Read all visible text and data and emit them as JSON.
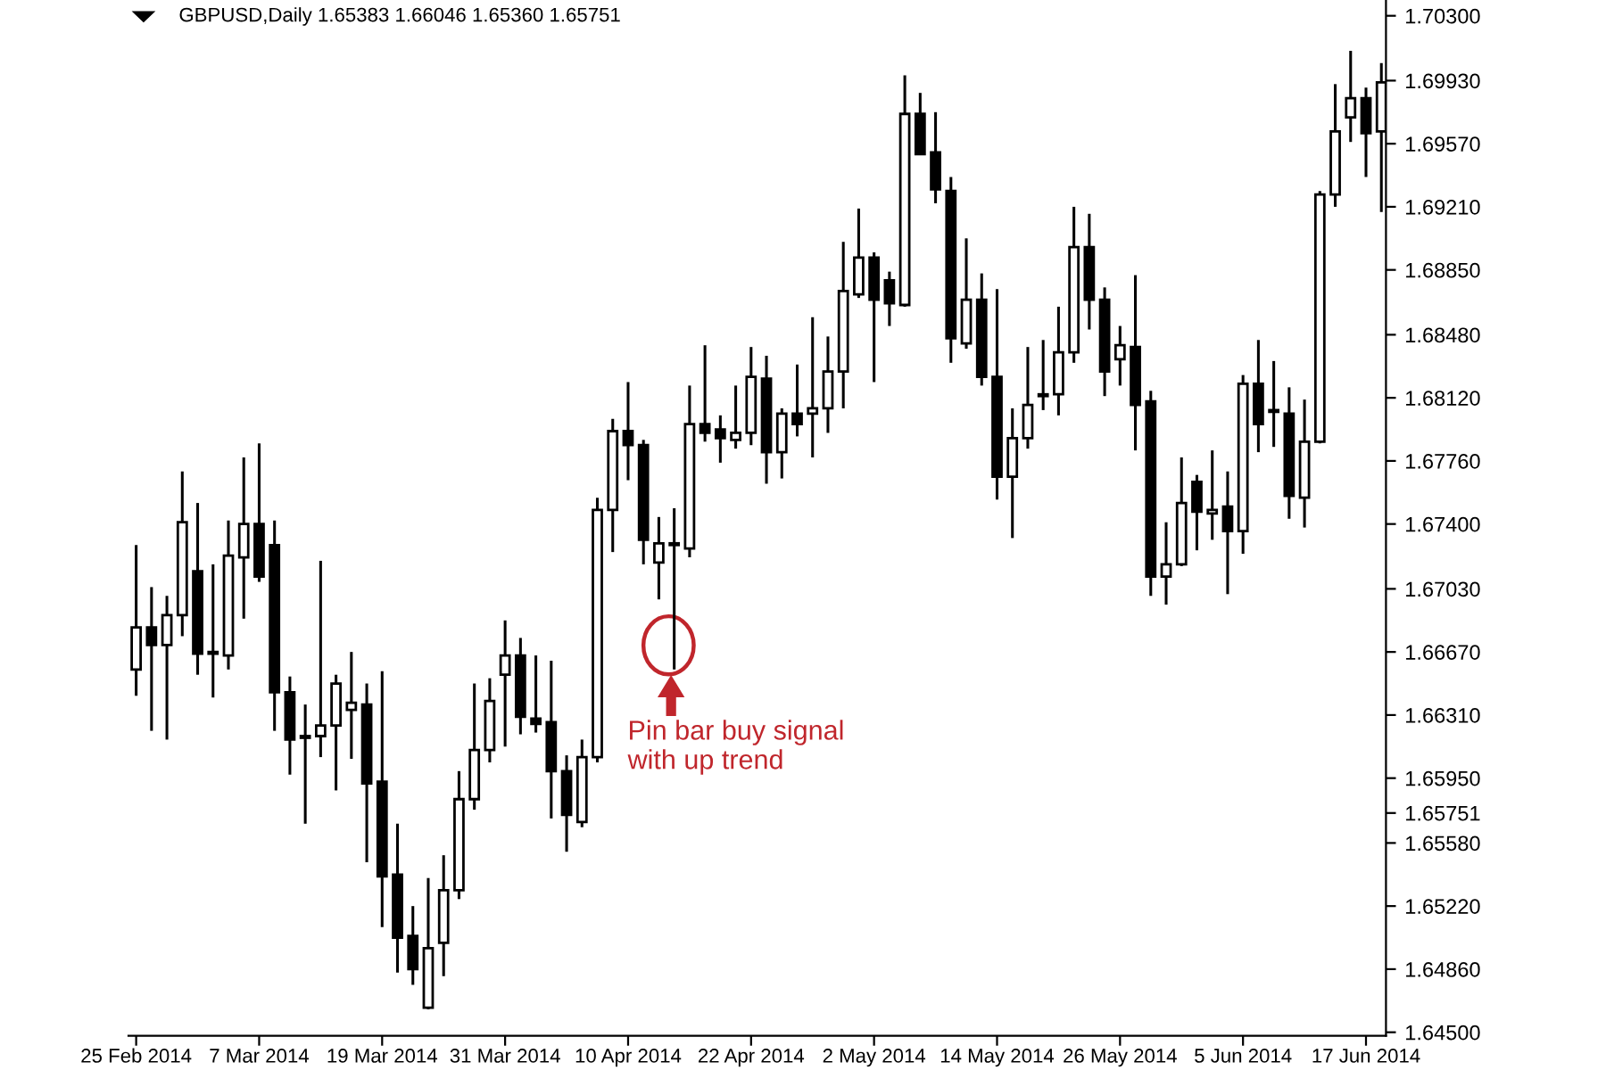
{
  "chart_data": {
    "type": "candlestick",
    "title": "GBPUSD,Daily 1.65383 1.66046 1.65360 1.65751",
    "categories": [
      "25 Feb 2014",
      null,
      null,
      null,
      null,
      null,
      null,
      null,
      "7 Mar 2014",
      null,
      null,
      null,
      null,
      null,
      null,
      null,
      "19 Mar 2014",
      null,
      null,
      null,
      null,
      null,
      null,
      null,
      "31 Mar 2014",
      null,
      null,
      null,
      null,
      null,
      null,
      null,
      "10 Apr 2014",
      null,
      null,
      null,
      null,
      null,
      null,
      null,
      "22 Apr 2014",
      null,
      null,
      null,
      null,
      null,
      null,
      null,
      "2 May 2014",
      null,
      null,
      null,
      null,
      null,
      null,
      null,
      "14 May 2014",
      null,
      null,
      null,
      null,
      null,
      null,
      null,
      "26 May 2014",
      null,
      null,
      null,
      null,
      null,
      null,
      null,
      "5 Jun 2014",
      null,
      null,
      null,
      null,
      null,
      null,
      null,
      "17 Jun 2014",
      null
    ],
    "ohlc": [
      [
        1.6657,
        1.6728,
        1.6642,
        1.6681
      ],
      [
        1.6681,
        1.6704,
        1.6622,
        1.6671
      ],
      [
        1.6671,
        1.6699,
        1.6617,
        1.6688
      ],
      [
        1.6688,
        1.677,
        1.6676,
        1.6741
      ],
      [
        1.6713,
        1.6752,
        1.6654,
        1.6666
      ],
      [
        1.6666,
        1.6717,
        1.6641,
        1.6667
      ],
      [
        1.6665,
        1.6742,
        1.6657,
        1.6722
      ],
      [
        1.6721,
        1.6778,
        1.6686,
        1.674
      ],
      [
        1.674,
        1.6786,
        1.6707,
        1.671
      ],
      [
        1.6728,
        1.6742,
        1.6622,
        1.6644
      ],
      [
        1.6644,
        1.6653,
        1.6597,
        1.6617
      ],
      [
        1.6618,
        1.6637,
        1.6569,
        1.6619
      ],
      [
        1.6619,
        1.6719,
        1.6607,
        1.6625
      ],
      [
        1.6625,
        1.6654,
        1.6588,
        1.6649
      ],
      [
        1.6634,
        1.6667,
        1.6606,
        1.6638
      ],
      [
        1.6637,
        1.6649,
        1.6547,
        1.6592
      ],
      [
        1.6593,
        1.6656,
        1.651,
        1.6539
      ],
      [
        1.654,
        1.6569,
        1.6484,
        1.6504
      ],
      [
        1.6505,
        1.6522,
        1.6477,
        1.6486
      ],
      [
        1.6464,
        1.6538,
        1.6463,
        1.6498
      ],
      [
        1.6501,
        1.6551,
        1.6482,
        1.6531
      ],
      [
        1.6531,
        1.6599,
        1.6526,
        1.6583
      ],
      [
        1.6583,
        1.6649,
        1.6577,
        1.6611
      ],
      [
        1.6611,
        1.6652,
        1.6604,
        1.6639
      ],
      [
        1.6654,
        1.6685,
        1.6613,
        1.6665
      ],
      [
        1.6665,
        1.6675,
        1.662,
        1.663
      ],
      [
        1.6629,
        1.6665,
        1.6621,
        1.6626
      ],
      [
        1.6627,
        1.6662,
        1.6572,
        1.6599
      ],
      [
        1.6599,
        1.6608,
        1.6553,
        1.6574
      ],
      [
        1.657,
        1.6617,
        1.6567,
        1.6607
      ],
      [
        1.6607,
        1.6755,
        1.6604,
        1.6748
      ],
      [
        1.6748,
        1.68,
        1.6724,
        1.6793
      ],
      [
        1.6793,
        1.6821,
        1.6765,
        1.6785
      ],
      [
        1.6785,
        1.6788,
        1.6717,
        1.6731
      ],
      [
        1.6718,
        1.6744,
        1.6697,
        1.6729
      ],
      [
        1.6728,
        1.6749,
        1.6657,
        1.6729
      ],
      [
        1.6726,
        1.6819,
        1.6721,
        1.6797
      ],
      [
        1.6797,
        1.6842,
        1.6787,
        1.6792
      ],
      [
        1.6794,
        1.6802,
        1.6775,
        1.6789
      ],
      [
        1.6788,
        1.6819,
        1.6783,
        1.6792
      ],
      [
        1.6792,
        1.6841,
        1.6785,
        1.6824
      ],
      [
        1.6823,
        1.6836,
        1.6763,
        1.6781
      ],
      [
        1.6781,
        1.6806,
        1.6766,
        1.6803
      ],
      [
        1.6803,
        1.6831,
        1.679,
        1.6797
      ],
      [
        1.6803,
        1.6858,
        1.6778,
        1.6806
      ],
      [
        1.6806,
        1.6847,
        1.6792,
        1.6827
      ],
      [
        1.6827,
        1.6901,
        1.6806,
        1.6873
      ],
      [
        1.6871,
        1.692,
        1.6869,
        1.6892
      ],
      [
        1.6892,
        1.6895,
        1.6821,
        1.6868
      ],
      [
        1.6879,
        1.6884,
        1.6853,
        1.6866
      ],
      [
        1.6865,
        1.6996,
        1.6864,
        1.6974
      ],
      [
        1.6974,
        1.6986,
        1.6951,
        1.6951
      ],
      [
        1.6952,
        1.6975,
        1.6923,
        1.6931
      ],
      [
        1.693,
        1.6938,
        1.6832,
        1.6846
      ],
      [
        1.6843,
        1.6903,
        1.684,
        1.6868
      ],
      [
        1.6868,
        1.6883,
        1.6819,
        1.6824
      ],
      [
        1.6824,
        1.6874,
        1.6754,
        1.6767
      ],
      [
        1.6767,
        1.6806,
        1.6732,
        1.6789
      ],
      [
        1.6789,
        1.6841,
        1.6783,
        1.6808
      ],
      [
        1.6813,
        1.6845,
        1.6805,
        1.6814
      ],
      [
        1.6814,
        1.6864,
        1.6802,
        1.6838
      ],
      [
        1.6838,
        1.6921,
        1.6832,
        1.6898
      ],
      [
        1.6898,
        1.6917,
        1.6851,
        1.6868
      ],
      [
        1.6868,
        1.6875,
        1.6813,
        1.6827
      ],
      [
        1.6834,
        1.6853,
        1.6819,
        1.6842
      ],
      [
        1.6841,
        1.6882,
        1.6782,
        1.6808
      ],
      [
        1.681,
        1.6816,
        1.6699,
        1.671
      ],
      [
        1.671,
        1.6741,
        1.6694,
        1.6717
      ],
      [
        1.6717,
        1.6778,
        1.6716,
        1.6752
      ],
      [
        1.6764,
        1.6768,
        1.6725,
        1.6747
      ],
      [
        1.6746,
        1.6782,
        1.6731,
        1.6748
      ],
      [
        1.675,
        1.677,
        1.67,
        1.6736
      ],
      [
        1.6736,
        1.6825,
        1.6723,
        1.682
      ],
      [
        1.682,
        1.6845,
        1.6781,
        1.6797
      ],
      [
        1.6804,
        1.6833,
        1.6784,
        1.6805
      ],
      [
        1.6803,
        1.6818,
        1.6743,
        1.6756
      ],
      [
        1.6755,
        1.6811,
        1.6738,
        1.6787
      ],
      [
        1.6787,
        1.693,
        1.6786,
        1.6928
      ],
      [
        1.6928,
        1.6991,
        1.6921,
        1.6964
      ],
      [
        1.6972,
        1.701,
        1.6958,
        1.6983
      ],
      [
        1.6983,
        1.6989,
        1.6938,
        1.6963
      ],
      [
        1.6964,
        1.7003,
        1.6918,
        1.6992
      ]
    ],
    "color": "#000000",
    "ylim": [
      1.6448,
      1.7039
    ],
    "yticks": [
      {
        "value": 1.645,
        "label": "1.64500"
      },
      {
        "value": 1.6486,
        "label": "1.64860"
      },
      {
        "value": 1.6522,
        "label": "1.65220"
      },
      {
        "value": 1.6558,
        "label": "1.65580"
      },
      {
        "value": 1.6595,
        "label": "1.65950"
      },
      {
        "value": 1.6631,
        "label": "1.66310"
      },
      {
        "value": 1.6667,
        "label": "1.66670"
      },
      {
        "value": 1.6703,
        "label": "1.67030"
      },
      {
        "value": 1.674,
        "label": "1.67400"
      },
      {
        "value": 1.6776,
        "label": "1.67760"
      },
      {
        "value": 1.6812,
        "label": "1.68120"
      },
      {
        "value": 1.6848,
        "label": "1.68480"
      },
      {
        "value": 1.6885,
        "label": "1.68850"
      },
      {
        "value": 1.6921,
        "label": "1.69210"
      },
      {
        "value": 1.6957,
        "label": "1.69570"
      },
      {
        "value": 1.6993,
        "label": "1.69930"
      },
      {
        "value": 1.703,
        "label": "1.70300"
      },
      {
        "value": 1.65751,
        "label": "1.65751"
      }
    ],
    "annotations": [
      "Pin bar buy signal\nwith up trend"
    ],
    "grid": false,
    "legend": false
  }
}
